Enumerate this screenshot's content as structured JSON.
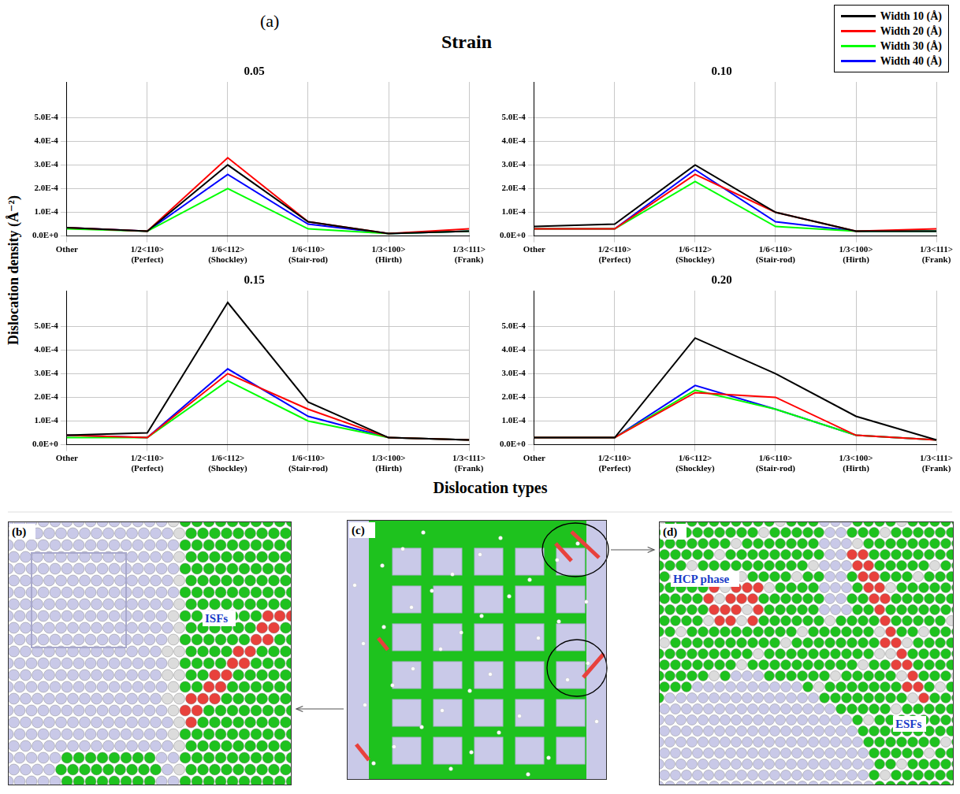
{
  "chart_data": {
    "type": "line",
    "panel": "(a)",
    "x_label": "Dislocation types",
    "y_label": "Dislocation density (Å⁻²)",
    "strain_label": "Strain",
    "strains": [
      0.05,
      {
        "value": 0.1,
        "label": "0.10"
      },
      0.15,
      {
        "value": 0.2,
        "label": "0.20"
      }
    ],
    "categories": [
      "Other",
      "1/2<110> (Perfect)",
      "1/6<112> (Shockley)",
      "1/6<110> (Stair-rod)",
      "1/3<100> (Hirth)",
      "1/3<111> (Frank)"
    ],
    "ylim": [
      0,
      0.00065
    ],
    "yticks": [
      {
        "value": 0,
        "label": "0.0E+0"
      },
      {
        "value": 0.0001,
        "label": "1.0E-4"
      },
      {
        "value": 0.0002,
        "label": "2.0E-4"
      },
      {
        "value": 0.0003,
        "label": "3.0E-4"
      },
      {
        "value": 0.0004,
        "label": "4.0E-4"
      },
      {
        "value": 0.0005,
        "label": "5.0E-4"
      }
    ],
    "grid": true,
    "legend": "top-right",
    "series": [
      {
        "name": "Width 10 (Å)",
        "color": "#000000",
        "values": [
          [
            3.5e-05,
            2e-05,
            0.0003,
            6e-05,
            1e-05,
            2e-05
          ],
          [
            4e-05,
            5e-05,
            0.0003,
            0.0001,
            2e-05,
            2e-05
          ],
          [
            4e-05,
            5e-05,
            0.0006,
            0.00018,
            3e-05,
            2e-05
          ],
          [
            3e-05,
            3e-05,
            0.00045,
            0.0003,
            0.00012,
            2e-05
          ]
        ]
      },
      {
        "name": "Width 20 (Å)",
        "color": "#ff0000",
        "values": [
          [
            3.5e-05,
            2e-05,
            0.00033,
            6e-05,
            1e-05,
            3e-05
          ],
          [
            3e-05,
            3e-05,
            0.00026,
            0.0001,
            2e-05,
            3e-05
          ],
          [
            4e-05,
            3e-05,
            0.0003,
            0.00015,
            3e-05,
            2e-05
          ],
          [
            3e-05,
            3e-05,
            0.00022,
            0.0002,
            4e-05,
            2e-05
          ]
        ]
      },
      {
        "name": "Width 30 (Å)",
        "color": "#00ff00",
        "values": [
          [
            3e-05,
            2e-05,
            0.0002,
            3e-05,
            1e-05,
            2e-05
          ],
          [
            3e-05,
            3e-05,
            0.00023,
            4e-05,
            2e-05,
            2e-05
          ],
          [
            3e-05,
            3e-05,
            0.00027,
            0.0001,
            3e-05,
            2e-05
          ],
          [
            3e-05,
            3e-05,
            0.00023,
            0.00015,
            4e-05,
            2e-05
          ]
        ]
      },
      {
        "name": "Width 40 (Å)",
        "color": "#0000ff",
        "values": [
          [
            3.5e-05,
            2e-05,
            0.00026,
            5e-05,
            1e-05,
            2e-05
          ],
          [
            3e-05,
            3e-05,
            0.00028,
            6e-05,
            2e-05,
            2e-05
          ],
          [
            4e-05,
            3e-05,
            0.00032,
            0.00012,
            3e-05,
            2e-05
          ],
          [
            3e-05,
            3e-05,
            0.00025,
            0.00015,
            4e-05,
            2e-05
          ]
        ]
      }
    ]
  },
  "images": [
    {
      "label": "(b)",
      "annotations": [
        "ISFs"
      ]
    },
    {
      "label": "(c)"
    },
    {
      "label": "(d)",
      "annotations": [
        "HCP phase",
        "ESFs"
      ]
    }
  ]
}
